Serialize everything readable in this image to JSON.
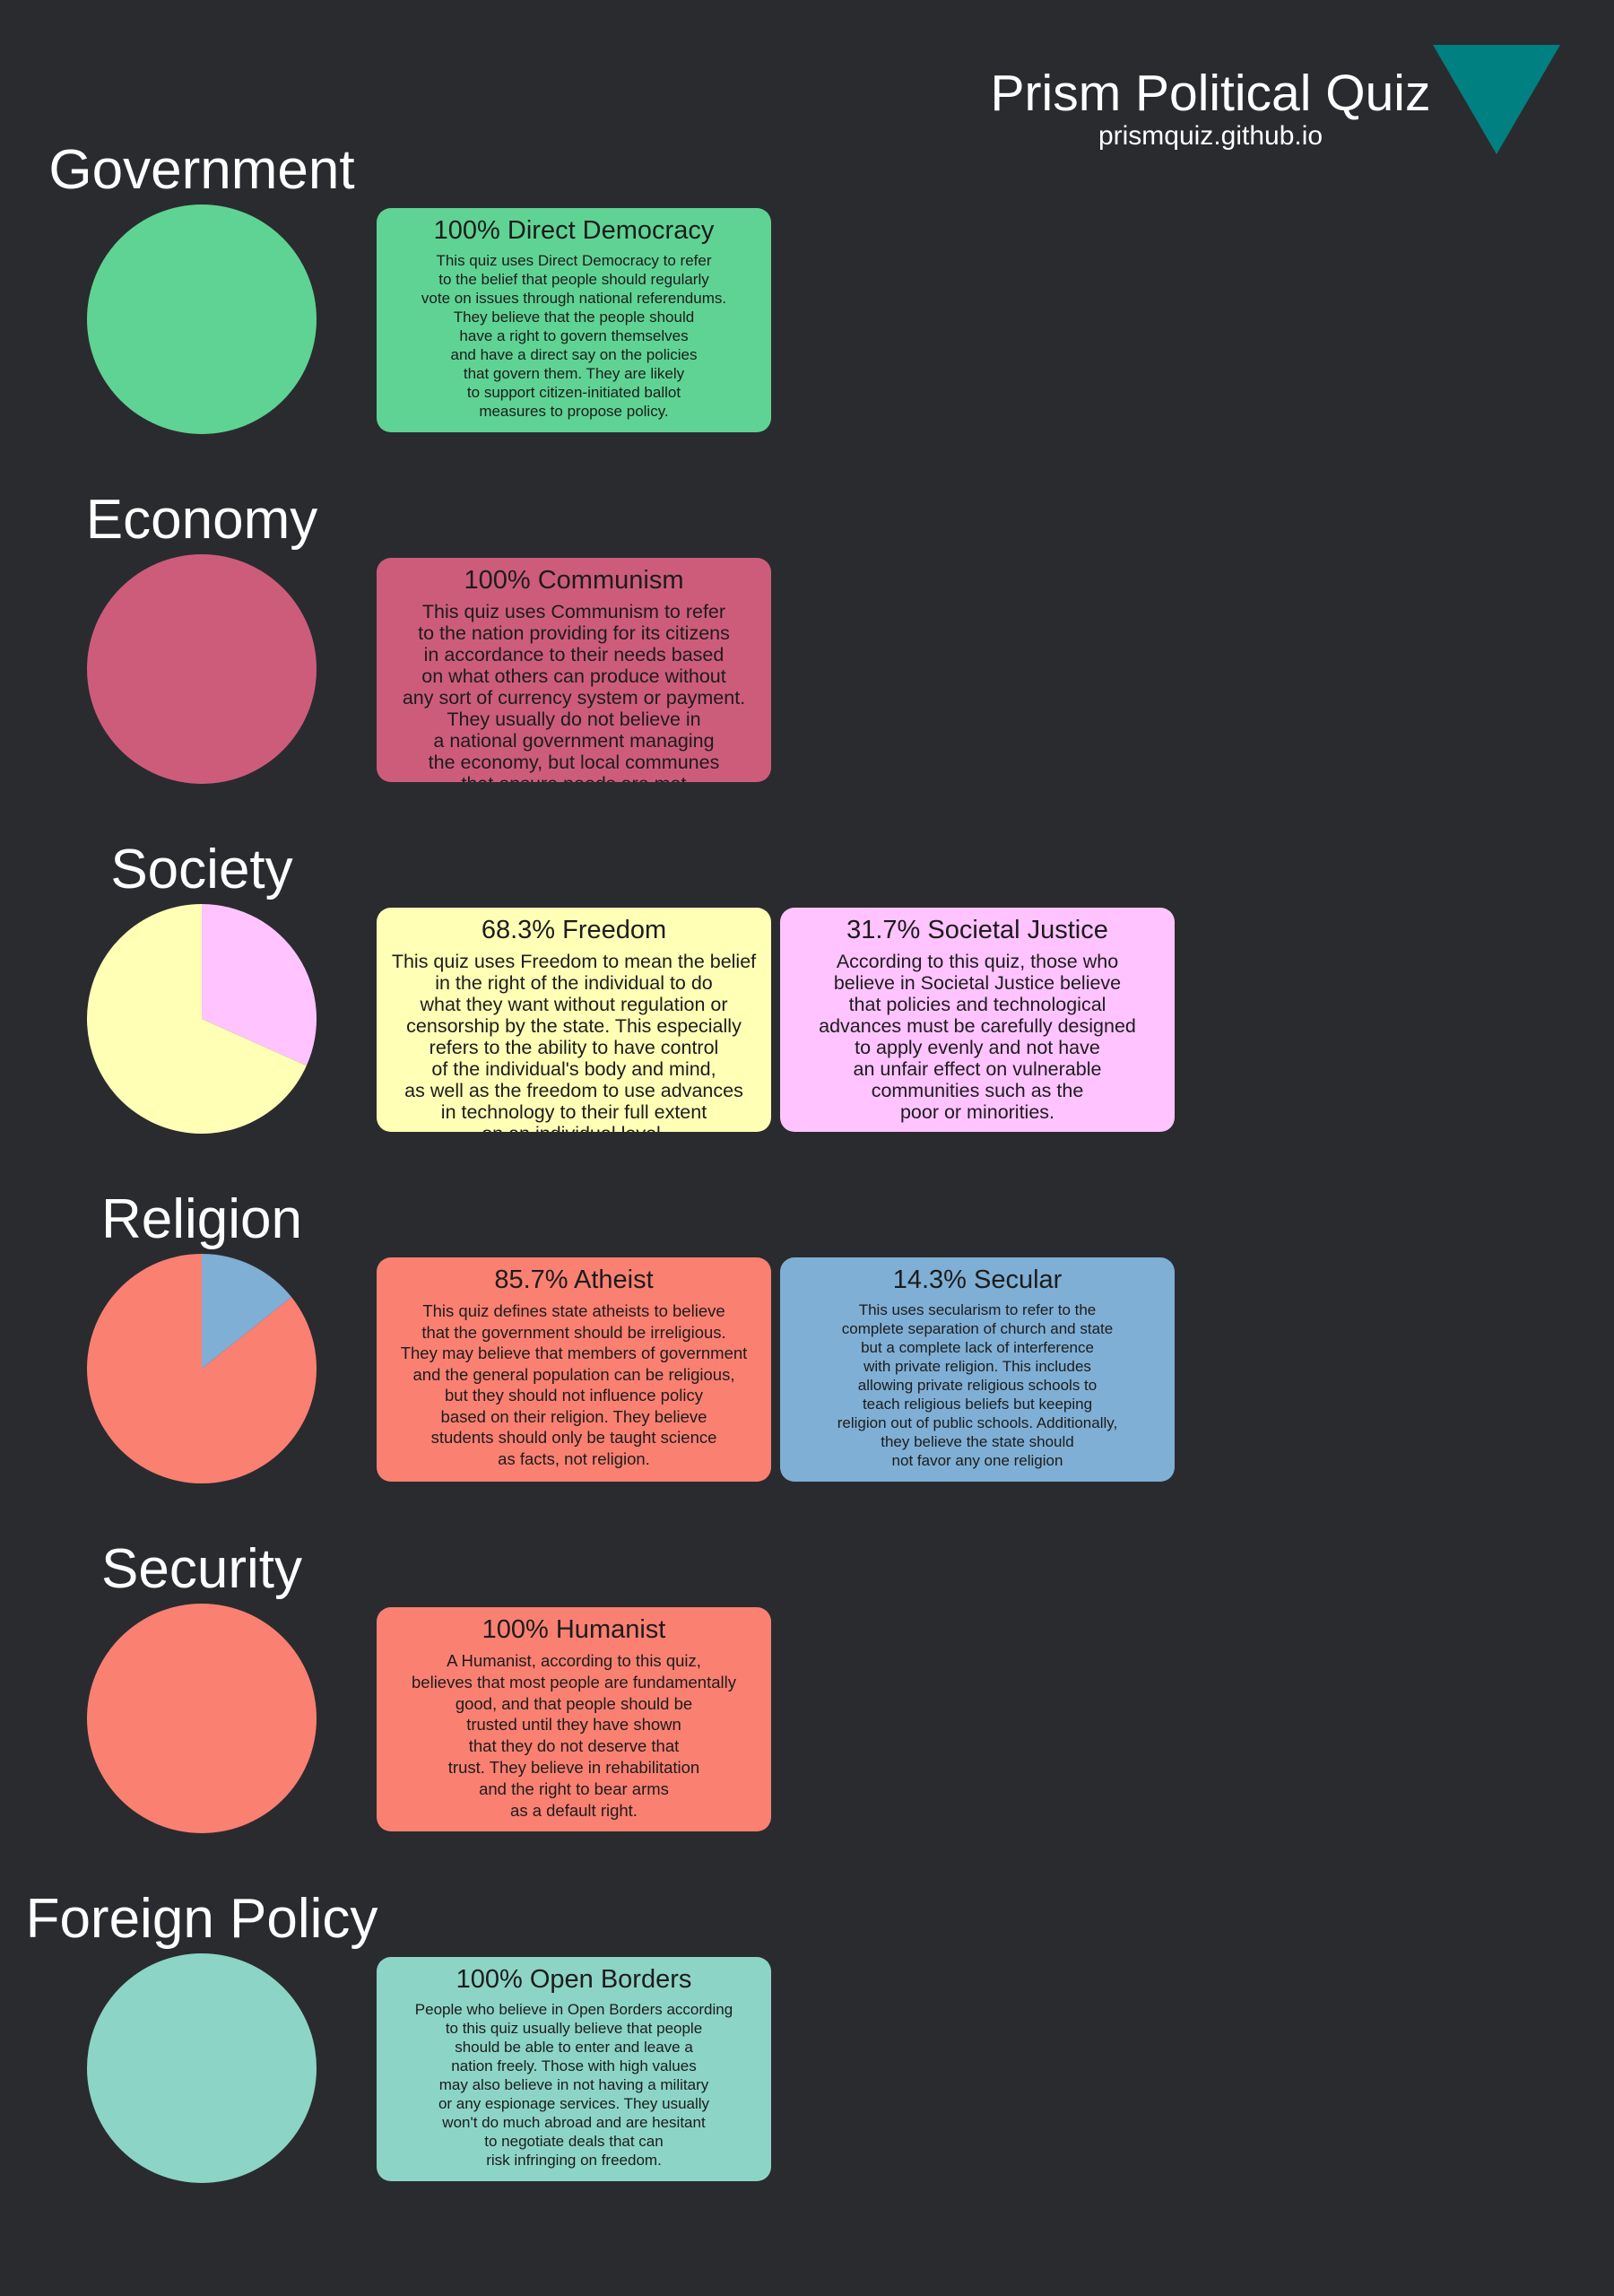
{
  "header": {
    "title": "Prism Political Quiz",
    "url": "prismquiz.github.io",
    "logo_color": "#008080"
  },
  "sections": [
    {
      "title": "Government",
      "results": [
        {
          "label": "100% Direct Democracy",
          "value": 100,
          "color": "#5fd393",
          "description": "This quiz uses Direct Democracy to refer\nto the belief that people should regularly\nvote on issues through national referendums.\nThey believe that the people should\nhave a right to govern themselves\nand have a direct say on the policies\nthat govern them. They are likely\nto support citizen-initiated ballot\nmeasures to propose policy."
        }
      ]
    },
    {
      "title": "Economy",
      "results": [
        {
          "label": "100% Communism",
          "value": 100,
          "color": "#cd5c7b",
          "description": "This quiz uses Communism to refer\nto the nation providing for its citizens\nin accordance to their needs based\non what others can produce without\nany sort of currency system or payment.\nThey usually do not believe in\na national government managing\nthe economy, but local communes\nthat ensure needs are met"
        }
      ]
    },
    {
      "title": "Society",
      "results": [
        {
          "label": "68.3% Freedom",
          "value": 68.3,
          "color": "#ffffb6",
          "description": "This quiz uses Freedom to mean the belief\nin the right of the individual to do\nwhat they want without regulation or\ncensorship by the state. This especially\nrefers to the ability to have control\nof the individual's body and mind,\nas well as the freedom to use advances\nin technology to their full extent\non an individual level."
        },
        {
          "label": "31.7% Societal Justice",
          "value": 31.7,
          "color": "#ffc3ff",
          "description": "According to this quiz, those who\nbelieve in Societal Justice believe\nthat policies and technological\nadvances must be carefully designed\nto apply evenly and not have\nan unfair effect on vulnerable\ncommunities such as the\npoor or minorities."
        }
      ]
    },
    {
      "title": "Religion",
      "results": [
        {
          "label": "85.7% Atheist",
          "value": 85.7,
          "color": "#fa8072",
          "description": "This quiz defines state atheists to believe\nthat the government should be irreligious.\nThey may believe that members of government\nand the general population can be religious,\nbut they should not influence policy\nbased on their religion. They believe\nstudents should only be taught science\nas facts, not religion."
        },
        {
          "label": "14.3% Secular",
          "value": 14.3,
          "color": "#7fafd4",
          "description": "This uses secularism to refer to the\ncomplete separation of church and state\nbut a complete lack of interference\nwith private religion. This includes\nallowing private religious schools to\nteach religious beliefs but keeping\nreligion out of public schools. Additionally,\nthey believe the state should\nnot favor any one religion"
        }
      ]
    },
    {
      "title": "Security",
      "results": [
        {
          "label": "100% Humanist",
          "value": 100,
          "color": "#fa8072",
          "description": "A Humanist, according to this quiz,\nbelieves that most people are fundamentally\ngood, and that people should be\ntrusted until they have shown\nthat they do not deserve that\ntrust. They believe in rehabilitation\nand the right to bear arms\nas a default right."
        }
      ]
    },
    {
      "title": "Foreign Policy",
      "results": [
        {
          "label": "100% Open Borders",
          "value": 100,
          "color": "#8cd4c6",
          "description": "People who believe in Open Borders according\nto this quiz usually believe that people\nshould be able to enter and leave a\nnation freely. Those with high values\nmay also believe in not having a military\nor any espionage services. They usually\nwon't do much abroad and are hesitant\nto negotiate deals that can\nrisk infringing on freedom."
        }
      ]
    }
  ]
}
